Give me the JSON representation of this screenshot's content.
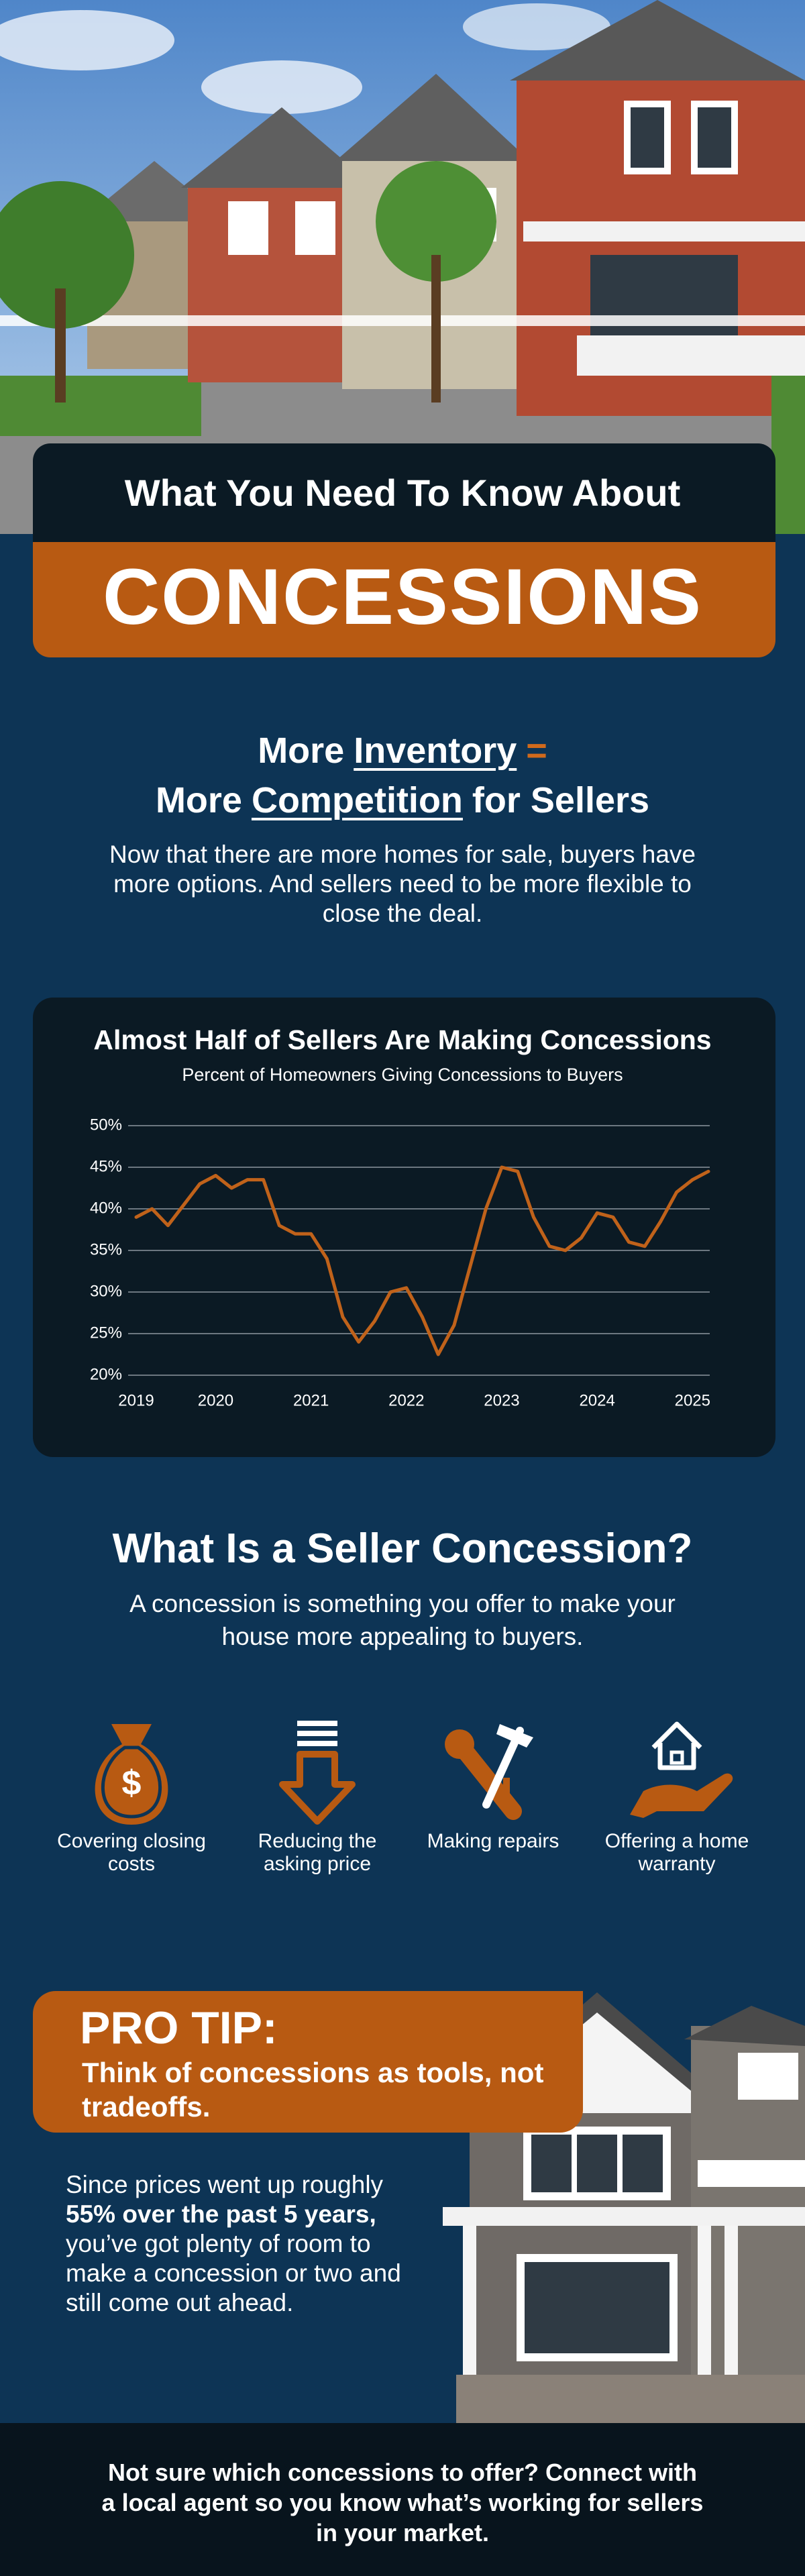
{
  "header": {
    "title": "What You Need To Know About",
    "highlight": "CONCESSIONS"
  },
  "intro": {
    "heading_line_1": [
      "More",
      "Inventory",
      "="
    ],
    "heading_line_2": [
      "More",
      "Competition",
      "for Sellers"
    ],
    "text": "Now that there are more homes for sale, buyers have more options. And sellers need to be more flexible to close the deal."
  },
  "chart_data": {
    "type": "line",
    "title": "Almost Half of Sellers Are Making Concessions",
    "subtitle": "Percent of Homeowners Giving Concessions to Buyers",
    "categories": [
      "2019",
      null,
      null,
      null,
      null,
      "2020",
      null,
      null,
      null,
      null,
      null,
      "2021",
      null,
      null,
      null,
      null,
      null,
      "2022",
      null,
      null,
      null,
      null,
      null,
      "2023",
      null,
      null,
      null,
      null,
      null,
      "2024",
      null,
      null,
      null,
      null,
      null,
      "2025",
      null
    ],
    "series": [
      {
        "name": "Percent of Homeowners Giving Concessions to Buyers",
        "color": "#c0621a",
        "values": [
          39,
          40,
          38,
          40.5,
          43,
          44,
          42.5,
          43.5,
          43.5,
          38,
          37,
          37,
          34,
          27,
          24,
          26.5,
          30,
          30.5,
          27,
          22.5,
          26,
          33,
          40,
          45,
          44.5,
          39,
          35.5,
          35,
          36.5,
          39.5,
          39,
          36,
          35.5,
          38.5,
          42,
          43.5,
          44.5
        ]
      }
    ],
    "ylim": [
      20,
      50
    ],
    "yticks": [
      {
        "value": 20,
        "label": "20%"
      },
      {
        "value": 25,
        "label": "25%"
      },
      {
        "value": 30,
        "label": "30%"
      },
      {
        "value": 35,
        "label": "35%"
      },
      {
        "value": 40,
        "label": "40%"
      },
      {
        "value": 45,
        "label": "45%"
      },
      {
        "value": 50,
        "label": "50%"
      }
    ],
    "grid": true
  },
  "concession": {
    "heading": "What Is a Seller Concession?",
    "text": "A concession is something you offer to make your house more appealing to buyers.",
    "examples": [
      "Covering closing costs",
      "Reducing the asking price",
      "Making repairs",
      "Offering a home warranty"
    ]
  },
  "pro_tip": {
    "label": "PRO TIP:",
    "text": "Think of concessions as tools, not tradeoffs.",
    "body": [
      "Since prices went up roughly",
      "55% over the past 5 years,",
      "you’ve got plenty of room to make a concession or two and still come out ahead."
    ]
  },
  "footer": {
    "text": "Not sure which concessions to offer? Connect with a local agent so you know what’s working for sellers in your market."
  }
}
